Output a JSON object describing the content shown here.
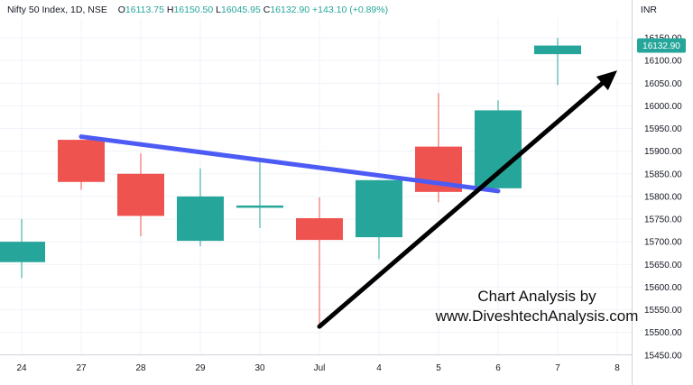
{
  "legend": {
    "symbol": "Nifty 50 Index, 1D, NSE",
    "o_label": "O",
    "o_value": "16113.75",
    "h_label": "H",
    "h_value": "16150.50",
    "l_label": "L",
    "l_value": "16045.95",
    "c_label": "C",
    "c_value": "16132.90",
    "change": "+143.10 (+0.89%)"
  },
  "currency": "INR",
  "last_price_label": "16132.90",
  "watermark": {
    "line1": "Chart Analysis by",
    "line2": "www.DiveshtechAnalysis.com"
  },
  "colors": {
    "up": "#26a69a",
    "down": "#ef5350",
    "resistance_line": "#4d5bf5",
    "support_arrow": "#000000",
    "price_tag": "#26a69a"
  },
  "chart_data": {
    "type": "candlestick",
    "x_tick_labels": [
      "24",
      "27",
      "28",
      "29",
      "30",
      "Jul",
      "4",
      "5",
      "6",
      "7",
      "8"
    ],
    "y_ticks": [
      15450,
      15500,
      15550,
      15600,
      15650,
      15700,
      15750,
      15800,
      15850,
      15900,
      15950,
      16000,
      16050,
      16100,
      16150
    ],
    "y_tick_labels": [
      "15450.00",
      "15500.00",
      "15550.00",
      "15600.00",
      "15650.00",
      "15700.00",
      "15750.00",
      "15800.00",
      "15850.00",
      "15900.00",
      "15950.00",
      "16000.00",
      "16050.00",
      "16100.00",
      "16150.00"
    ],
    "ylim": [
      15440,
      16190
    ],
    "grid": true,
    "candles": [
      {
        "x": "24",
        "open": 15655,
        "high": 15750,
        "low": 15620,
        "close": 15700
      },
      {
        "x": "27",
        "open": 15925,
        "high": 15926,
        "low": 15815,
        "close": 15832
      },
      {
        "x": "28",
        "open": 15850,
        "high": 15895,
        "low": 15712,
        "close": 15757
      },
      {
        "x": "29",
        "open": 15702,
        "high": 15862,
        "low": 15690,
        "close": 15800
      },
      {
        "x": "30",
        "open": 15775,
        "high": 15885,
        "low": 15730,
        "close": 15780
      },
      {
        "x": "Jul",
        "open": 15752,
        "high": 15798,
        "low": 15512,
        "close": 15704
      },
      {
        "x": "4",
        "open": 15710,
        "high": 15836,
        "low": 15662,
        "close": 15836
      },
      {
        "x": "5",
        "open": 15910,
        "high": 16028,
        "low": 15787,
        "close": 15810
      },
      {
        "x": "6",
        "open": 15818,
        "high": 16012,
        "low": 15818,
        "close": 15990
      },
      {
        "x": "7",
        "open": 16114,
        "high": 16150,
        "low": 16046,
        "close": 16133
      }
    ],
    "annotations": [
      {
        "kind": "trendline",
        "from": {
          "x": "27",
          "y": 15932
        },
        "to": {
          "x": "6",
          "y": 15812
        }
      },
      {
        "kind": "arrow",
        "from": {
          "x": "Jul",
          "y": 15513
        },
        "to": {
          "x": "8",
          "y": 16078
        }
      }
    ]
  }
}
